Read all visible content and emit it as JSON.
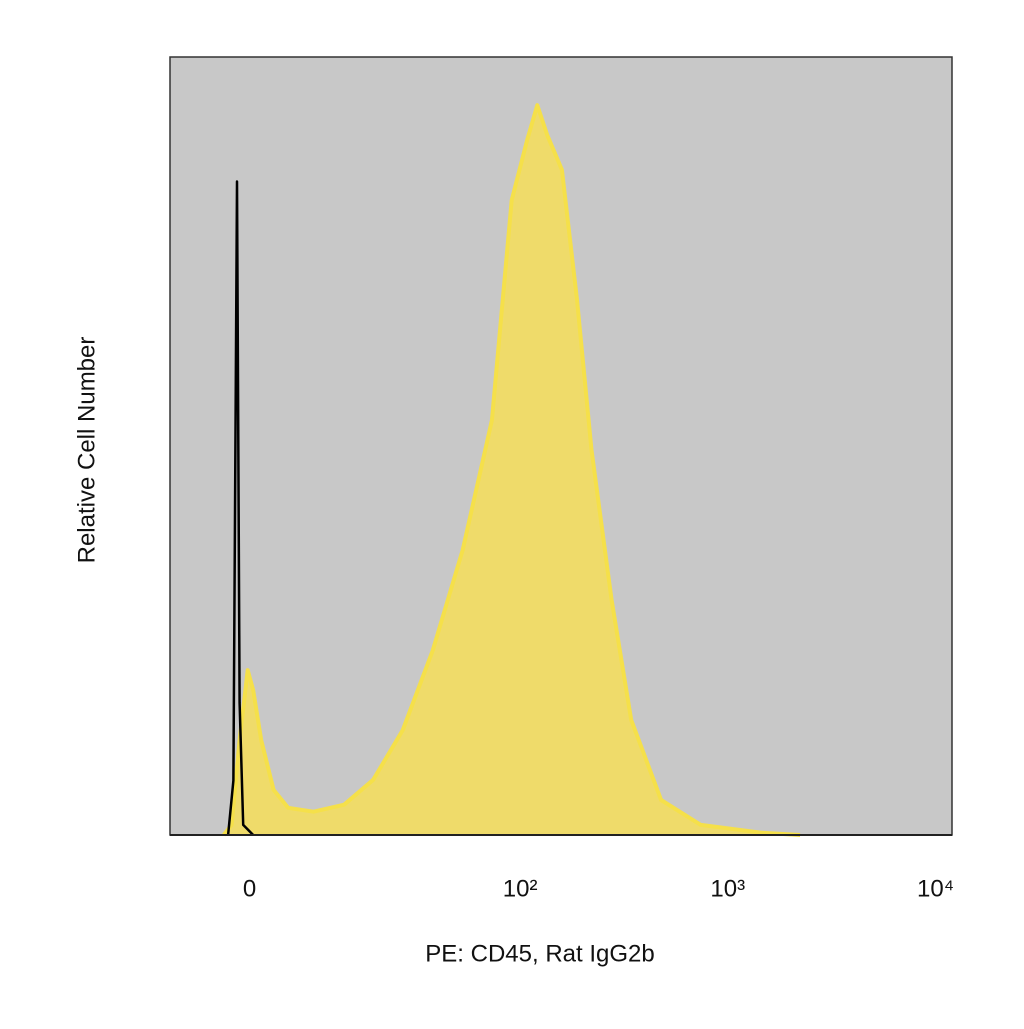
{
  "chart_data": {
    "type": "histogram_area",
    "xlabel": "PE: CD45, Rat IgG2b",
    "ylabel": "Relative Cell Number",
    "xscale": "asinh",
    "xlim": [
      -10,
      12000
    ],
    "ylim": [
      0,
      100
    ],
    "xticks": [
      0,
      {
        "value": 100,
        "label": "10²"
      },
      {
        "value": 1000,
        "label": "10³"
      },
      {
        "value": 10000,
        "label": "10⁴"
      }
    ],
    "background": "#c8c8c8",
    "series": [
      {
        "color": "#f5e04a",
        "fill": "#efdb6a",
        "x": [
          -2.9,
          -2.0,
          -1.1,
          -0.2,
          0.4,
          1.3,
          2.7,
          4.4,
          7.7,
          12.5,
          18.4,
          26.4,
          37.4,
          52.5,
          73,
          91,
          108,
          121,
          135,
          159,
          188,
          221,
          276,
          343,
          478,
          742,
          1450,
          2230
        ],
        "values": [
          0,
          1.3,
          12.2,
          21.2,
          18.6,
          12.2,
          5.8,
          3.5,
          3.0,
          3.9,
          7.1,
          13.5,
          23.7,
          36.6,
          53.3,
          81.6,
          89.3,
          93.8,
          90,
          85.5,
          68.8,
          49.5,
          30.2,
          14.8,
          4.5,
          1.3,
          0.3,
          0
        ]
      },
      {
        "color": "#000000",
        "x": [
          -2.4,
          -1.8,
          -1.4,
          -1.1,
          -0.7,
          0.4
        ],
        "values": [
          0,
          7,
          84,
          17,
          1.3,
          0
        ]
      }
    ]
  }
}
